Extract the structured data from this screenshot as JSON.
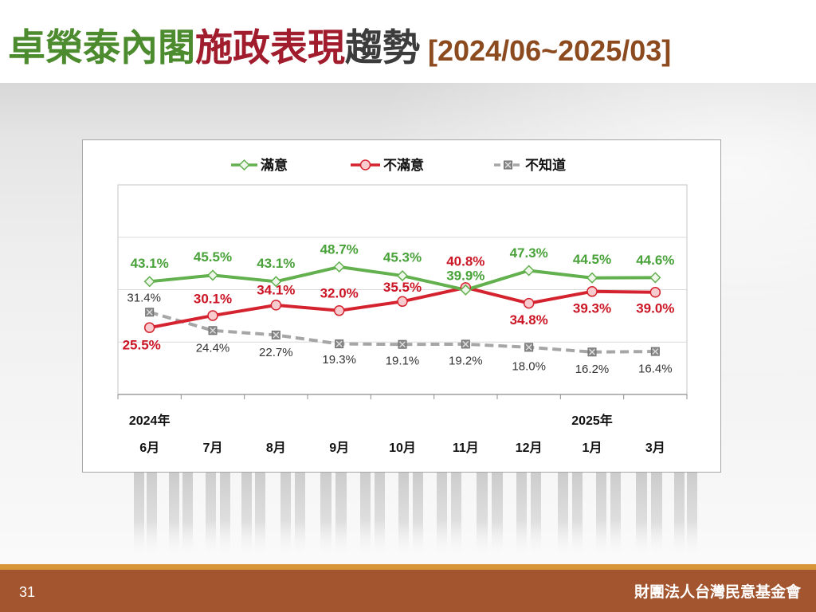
{
  "slide": {
    "title_parts": [
      {
        "text": "卓榮泰內閣",
        "color": "#4d8b2f"
      },
      {
        "text": "施政表現",
        "color": "#a11c2c"
      },
      {
        "text": "趨勢",
        "color": "#3c3c3c"
      },
      {
        "text": "[2024/06~2025/03]",
        "color": "#8c4a1f"
      }
    ],
    "page_number": "31",
    "organization": "財團法人台灣民意基金會"
  },
  "chart_data": {
    "type": "line",
    "categories": [
      "6月",
      "7月",
      "8月",
      "9月",
      "10月",
      "11月",
      "12月",
      "1月",
      "3月"
    ],
    "year_labels": [
      {
        "text": "2024年",
        "category": "6月"
      },
      {
        "text": "2025年",
        "category": "1月"
      }
    ],
    "ylim": [
      0,
      80
    ],
    "y_major_unit": 20,
    "grid": "horizontal",
    "legend_position": "top",
    "series": [
      {
        "name": "滿意",
        "color": "#62b04e",
        "label_color": "#49a23a",
        "marker": "diamond",
        "line_style": "solid",
        "values": [
          43.1,
          45.5,
          43.1,
          48.7,
          45.3,
          39.9,
          47.3,
          44.5,
          44.6
        ],
        "labels": [
          "43.1%",
          "45.5%",
          "43.1%",
          "48.7%",
          "45.3%",
          "39.9%",
          "47.3%",
          "44.5%",
          "44.6%"
        ]
      },
      {
        "name": "不滿意",
        "color": "#d4232f",
        "label_color": "#cc1626",
        "marker": "circle",
        "line_style": "solid",
        "values": [
          25.5,
          30.1,
          34.1,
          32.0,
          35.5,
          40.8,
          34.8,
          39.3,
          39.0
        ],
        "labels": [
          "25.5%",
          "30.1%",
          "34.1%",
          "32.0%",
          "35.5%",
          "40.8%",
          "34.8%",
          "39.3%",
          "39.0%"
        ]
      },
      {
        "name": "不知道",
        "color": "#a6a6a6",
        "label_color": "#333333",
        "marker": "square-x",
        "line_style": "dashed",
        "values": [
          31.4,
          24.4,
          22.7,
          19.3,
          19.1,
          19.2,
          18.0,
          16.2,
          16.4
        ],
        "labels": [
          "31.4%",
          "24.4%",
          "22.7%",
          "19.3%",
          "19.1%",
          "19.2%",
          "18.0%",
          "16.2%",
          "16.4%"
        ]
      }
    ]
  }
}
